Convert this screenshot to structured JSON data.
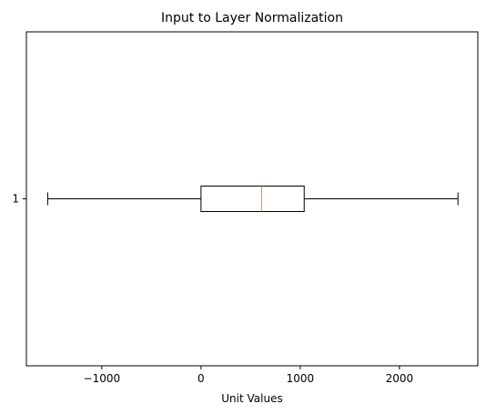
{
  "chart_data": {
    "type": "boxplot",
    "orientation": "horizontal",
    "title": "Input to Layer Normalization",
    "xlabel": "Unit Values",
    "ylabel": "",
    "xlim": [
      -1760,
      2790
    ],
    "x_ticks": [
      -1000,
      0,
      1000,
      2000
    ],
    "x_tick_labels": [
      "−1000",
      "0",
      "1000",
      "2000"
    ],
    "y_tick_labels": [
      "1"
    ],
    "grid": false,
    "boxes": [
      {
        "label": "1",
        "whisker_low": -1545,
        "q1": 0,
        "median": 610,
        "q3": 1040,
        "whisker_high": 2590
      }
    ],
    "colors": {
      "box": "#000000",
      "median": "#ff7f0e"
    }
  }
}
